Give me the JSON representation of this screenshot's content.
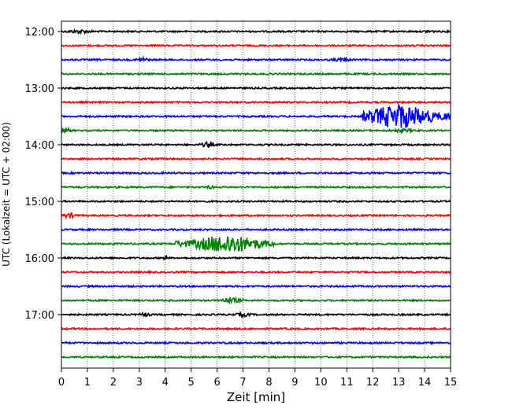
{
  "chart_data": {
    "type": "line",
    "title": "",
    "xlabel": "Zeit  [min]",
    "ylabel": "UTC (Lokalzeit = UTC + 02:00)",
    "xlim": [
      0,
      15
    ],
    "x_ticks": [
      "0",
      "1",
      "2",
      "3",
      "4",
      "5",
      "6",
      "7",
      "8",
      "9",
      "10",
      "11",
      "12",
      "13",
      "14",
      "15"
    ],
    "y_ticks": [
      "12:00",
      "13:00",
      "14:00",
      "15:00",
      "16:00",
      "17:00"
    ],
    "grid": "vertical dotted lines at each minute",
    "colors_cycle": [
      "#000000",
      "#ff0000",
      "#0000ff",
      "#008000"
    ],
    "trace_interval_minutes": 15,
    "start_time": "12:00",
    "traces": [
      {
        "time": "12:00",
        "color": "#000000",
        "bursts": [
          {
            "from": 0.2,
            "to": 1.2,
            "amp": 0.2
          },
          {
            "from": 14.0,
            "to": 14.4,
            "amp": 0.2
          }
        ]
      },
      {
        "time": "12:15",
        "color": "#ff0000",
        "bursts": []
      },
      {
        "time": "12:30",
        "color": "#0000ff",
        "bursts": [
          {
            "from": 2.9,
            "to": 3.4,
            "amp": 0.25
          },
          {
            "from": 10.3,
            "to": 11.3,
            "amp": 0.15
          }
        ]
      },
      {
        "time": "12:45",
        "color": "#008000",
        "bursts": []
      },
      {
        "time": "13:00",
        "color": "#000000",
        "bursts": []
      },
      {
        "time": "13:15",
        "color": "#ff0000",
        "bursts": []
      },
      {
        "time": "13:30",
        "color": "#0000ff",
        "bursts": [
          {
            "from": 11.6,
            "to": 15.0,
            "amp": 1.6,
            "center": 13.0
          }
        ]
      },
      {
        "time": "13:45",
        "color": "#008000",
        "bursts": [
          {
            "from": 0.0,
            "to": 0.4,
            "amp": 0.3
          },
          {
            "from": 12.5,
            "to": 13.8,
            "amp": 0.15
          }
        ]
      },
      {
        "time": "14:00",
        "color": "#000000",
        "bursts": [
          {
            "from": 5.3,
            "to": 5.9,
            "amp": 0.25
          }
        ]
      },
      {
        "time": "14:15",
        "color": "#ff0000",
        "bursts": []
      },
      {
        "time": "14:30",
        "color": "#0000ff",
        "bursts": []
      },
      {
        "time": "14:45",
        "color": "#008000",
        "bursts": [
          {
            "from": 5.6,
            "to": 5.9,
            "amp": 0.2
          }
        ]
      },
      {
        "time": "15:00",
        "color": "#000000",
        "bursts": []
      },
      {
        "time": "15:15",
        "color": "#ff0000",
        "bursts": [
          {
            "from": 0.0,
            "to": 0.6,
            "amp": 0.3
          }
        ]
      },
      {
        "time": "15:30",
        "color": "#0000ff",
        "bursts": []
      },
      {
        "time": "15:45",
        "color": "#008000",
        "bursts": [
          {
            "from": 4.4,
            "to": 8.2,
            "amp": 1.2,
            "center": 6.4
          }
        ]
      },
      {
        "time": "16:00",
        "color": "#000000",
        "bursts": [
          {
            "from": 3.9,
            "to": 4.1,
            "amp": 0.25
          }
        ]
      },
      {
        "time": "16:15",
        "color": "#ff0000",
        "bursts": []
      },
      {
        "time": "16:30",
        "color": "#0000ff",
        "bursts": []
      },
      {
        "time": "16:45",
        "color": "#008000",
        "bursts": [
          {
            "from": 6.0,
            "to": 7.0,
            "amp": 0.35
          }
        ]
      },
      {
        "time": "17:00",
        "color": "#000000",
        "bursts": [
          {
            "from": 3.0,
            "to": 3.4,
            "amp": 0.25
          },
          {
            "from": 6.6,
            "to": 7.4,
            "amp": 0.2
          }
        ]
      },
      {
        "time": "17:15",
        "color": "#ff0000",
        "bursts": []
      },
      {
        "time": "17:30",
        "color": "#0000ff",
        "bursts": []
      },
      {
        "time": "17:45",
        "color": "#008000",
        "bursts": []
      }
    ]
  }
}
